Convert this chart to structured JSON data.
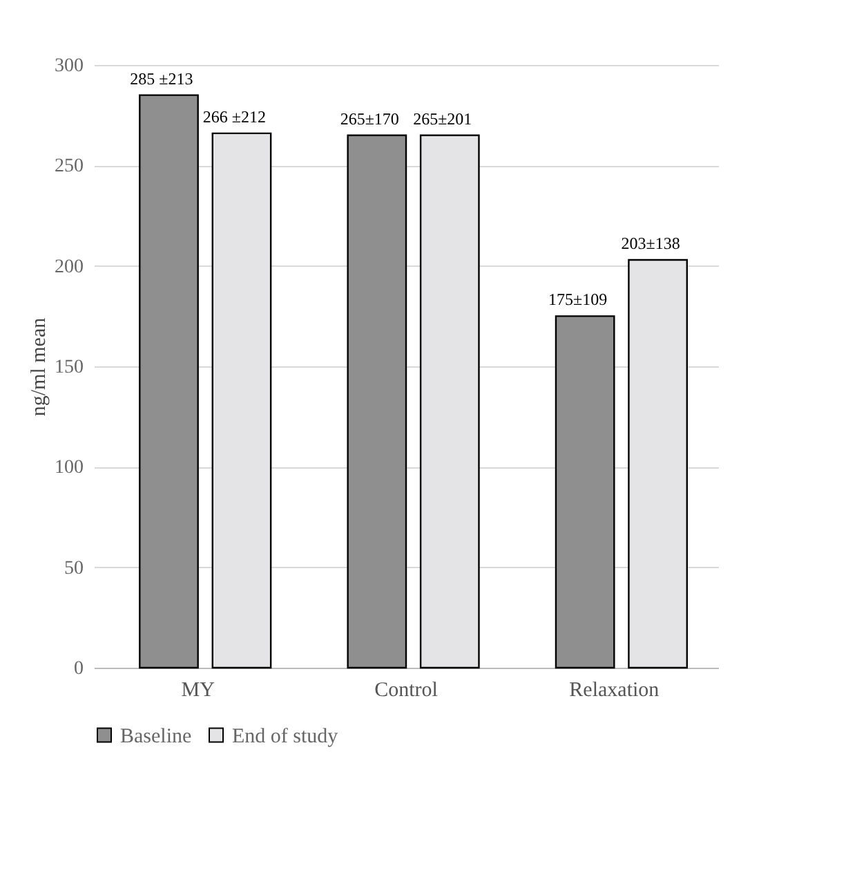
{
  "chart_data": {
    "type": "bar",
    "ylabel": "ng/ml mean",
    "categories": [
      "MY",
      "Control",
      "Relaxation"
    ],
    "series": [
      {
        "name": "Baseline",
        "color": "#8f8f8f",
        "values": [
          285,
          265,
          175
        ],
        "value_labels": [
          "285 ±213",
          "265±170",
          "175±109"
        ]
      },
      {
        "name": "End of study",
        "color": "#e4e4e6",
        "values": [
          266,
          265,
          203
        ],
        "value_labels": [
          "266 ±212",
          "265±201",
          "203±138"
        ]
      }
    ],
    "ylim": [
      0,
      300
    ],
    "yticks": [
      0,
      50,
      100,
      150,
      200,
      250,
      300
    ],
    "grid": "y",
    "legend": "bottom"
  }
}
